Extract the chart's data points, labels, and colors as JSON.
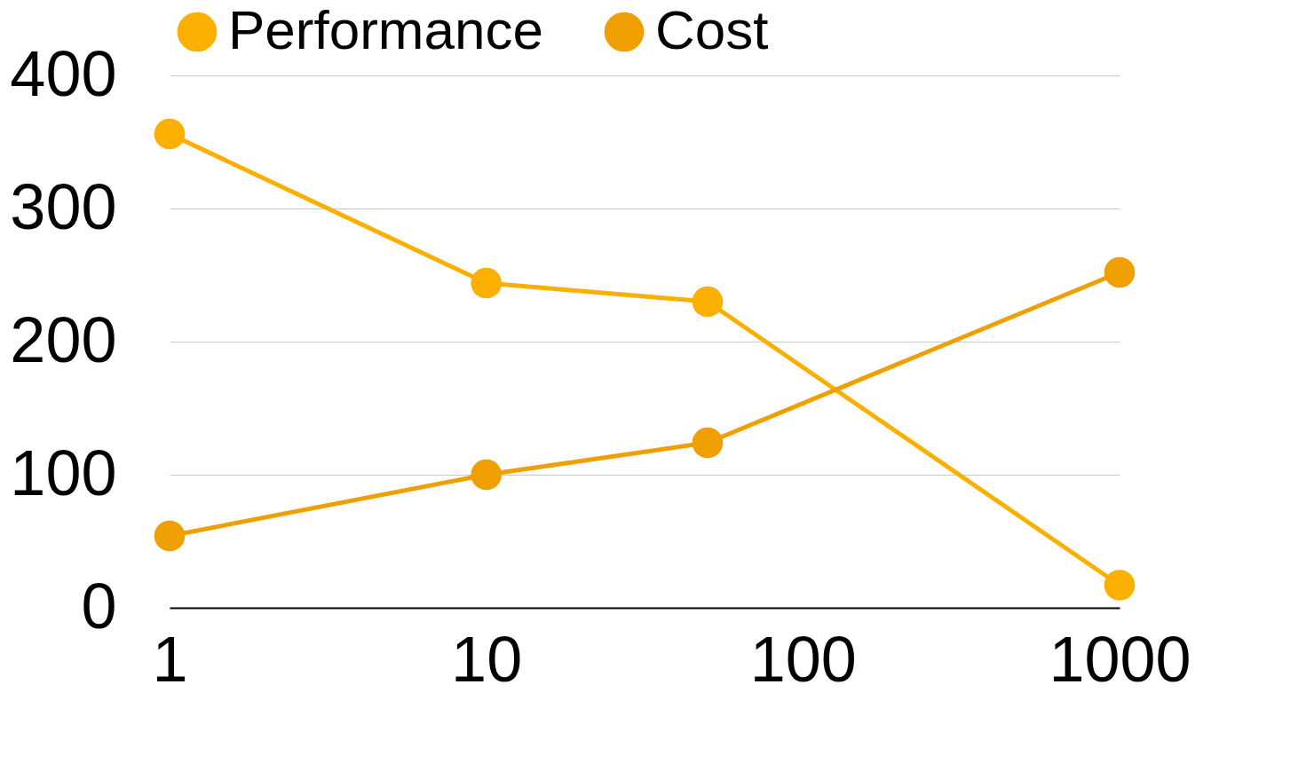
{
  "chart_data": {
    "type": "line",
    "log": "x",
    "grid": "y",
    "legend": "top",
    "marker": "circle",
    "line_style": "solid",
    "xlim": [
      1,
      1000
    ],
    "xticks": [
      1,
      10,
      100,
      1000
    ],
    "ylim": [
      0,
      400
    ],
    "yticks": [
      0,
      100,
      200,
      300,
      400
    ],
    "series": [
      {
        "name": "Performance",
        "color": "#fbb000",
        "x": [
          1,
          10,
          50,
          1000
        ],
        "values": [
          356,
          244,
          230,
          17
        ]
      },
      {
        "name": "Cost",
        "color": "#efa000",
        "x": [
          1,
          10,
          50,
          1000
        ],
        "values": [
          54,
          100,
          124,
          252
        ]
      }
    ]
  }
}
